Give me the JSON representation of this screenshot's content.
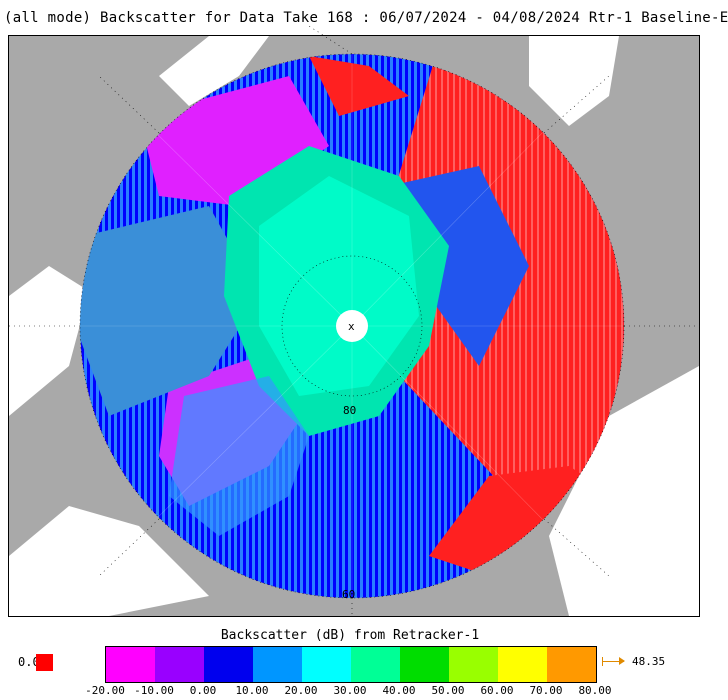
{
  "title": "(all mode) Backscatter for Data Take 168 : 06/07/2024 - 04/08/2024 Rtr-1 Baseline-E",
  "map": {
    "projection": "north polar stereographic",
    "latitude_label_80": "80",
    "latitude_label_60": "60",
    "pole_marker": "x",
    "colors": {
      "land": "#a9a9a9",
      "ocean_outside": "#ffffff",
      "sea_ice_core": "#00ffc0",
      "sea_ice_margin": "#3399ff",
      "open_water": "#0000ff",
      "high_backscatter": "#ff0000",
      "low_backscatter": "#ff00ff"
    }
  },
  "colorbar": {
    "title": "Backscatter (dB) from Retracker-1",
    "ticks": [
      "-20.00",
      "-10.00",
      "0.00",
      "10.00",
      "20.00",
      "30.00",
      "40.00",
      "50.00",
      "60.00",
      "70.00",
      "80.00"
    ],
    "colors": [
      "#ff00ff",
      "#9900ff",
      "#0000ee",
      "#0096ff",
      "#00ffff",
      "#00ff96",
      "#00dd00",
      "#99ff00",
      "#ffff00",
      "#ff9900"
    ],
    "below_range_label": "0.0",
    "below_range_color": "#ff0000",
    "above_range_label": "48.35",
    "above_range_color": "#e08a00"
  }
}
